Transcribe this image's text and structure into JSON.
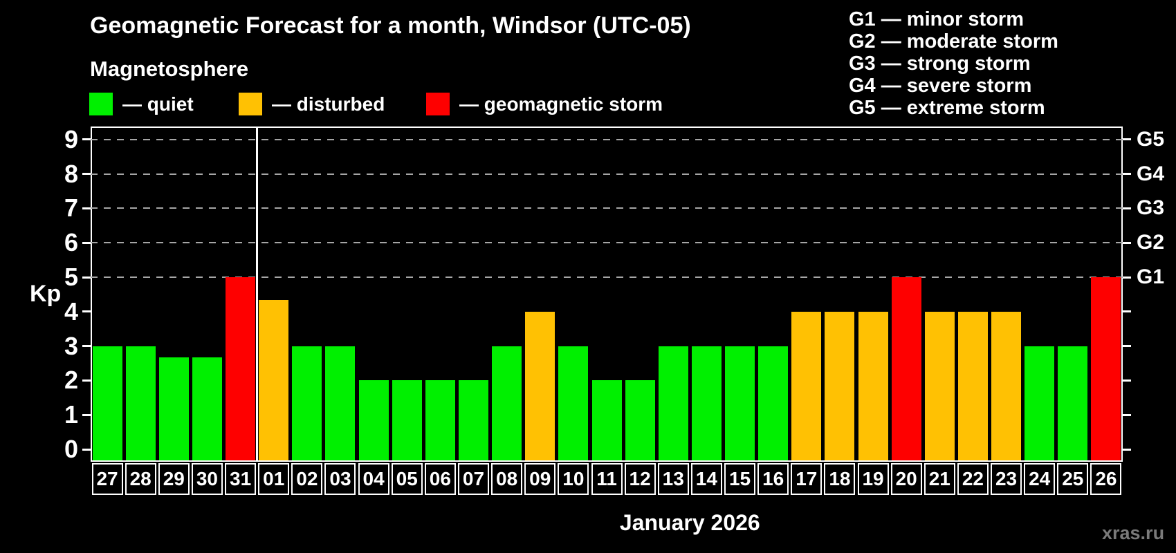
{
  "header": {
    "title": "Geomagnetic Forecast for a month, Windsor (UTC-05)",
    "subtitle": "Magnetosphere"
  },
  "legend": {
    "items": [
      {
        "name": "quiet",
        "label": "— quiet",
        "color": "#00f000"
      },
      {
        "name": "disturbed",
        "label": "— disturbed",
        "color": "#ffc103"
      },
      {
        "name": "storm",
        "label": "— geomagnetic storm",
        "color": "#fe0000"
      }
    ]
  },
  "g_scale_legend": {
    "lines": [
      "G1 — minor storm",
      "G2 — moderate storm",
      "G3 — strong storm",
      "G4 — severe storm",
      "G5 — extreme storm"
    ]
  },
  "chart_data": {
    "type": "bar",
    "title": "Geomagnetic Forecast for a month, Windsor (UTC-05)",
    "subtitle": "Magnetosphere",
    "ylabel": "Kp",
    "xlabel": "January 2026",
    "ylim": [
      0,
      9
    ],
    "yticks": [
      0,
      1,
      2,
      3,
      4,
      5,
      6,
      7,
      8,
      9
    ],
    "gridlines_kp": [
      5,
      6,
      7,
      8,
      9
    ],
    "grid": "dashed horizontal lines at G-storm levels only",
    "legend_position": "top-left",
    "g_levels": [
      {
        "label": "G1",
        "kp": 5
      },
      {
        "label": "G2",
        "kp": 6
      },
      {
        "label": "G3",
        "kp": 7
      },
      {
        "label": "G4",
        "kp": 8
      },
      {
        "label": "G5",
        "kp": 9
      }
    ],
    "categories": [
      "27",
      "28",
      "29",
      "30",
      "31",
      "01",
      "02",
      "03",
      "04",
      "05",
      "06",
      "07",
      "08",
      "09",
      "10",
      "11",
      "12",
      "13",
      "14",
      "15",
      "16",
      "17",
      "18",
      "19",
      "20",
      "21",
      "22",
      "23",
      "24",
      "25",
      "26"
    ],
    "values": [
      3.0,
      3.0,
      2.67,
      2.67,
      5.0,
      4.33,
      3.0,
      3.0,
      2.0,
      2.0,
      2.0,
      2.0,
      3.0,
      4.0,
      3.0,
      2.0,
      2.0,
      3.0,
      3.0,
      3.0,
      3.0,
      4.0,
      4.0,
      4.0,
      5.0,
      4.0,
      4.0,
      4.0,
      3.0,
      3.0,
      5.0
    ],
    "statuses": [
      "quiet",
      "quiet",
      "quiet",
      "quiet",
      "storm",
      "disturbed",
      "quiet",
      "quiet",
      "quiet",
      "quiet",
      "quiet",
      "quiet",
      "quiet",
      "disturbed",
      "quiet",
      "quiet",
      "quiet",
      "quiet",
      "quiet",
      "quiet",
      "quiet",
      "disturbed",
      "disturbed",
      "disturbed",
      "storm",
      "disturbed",
      "disturbed",
      "disturbed",
      "quiet",
      "quiet",
      "storm"
    ],
    "status_colors": {
      "quiet": "#00f000",
      "disturbed": "#ffc103",
      "storm": "#fe0000"
    },
    "month_boundary_after_index": 4
  },
  "footer": {
    "month_label": "January 2026",
    "watermark": "xras.ru"
  }
}
